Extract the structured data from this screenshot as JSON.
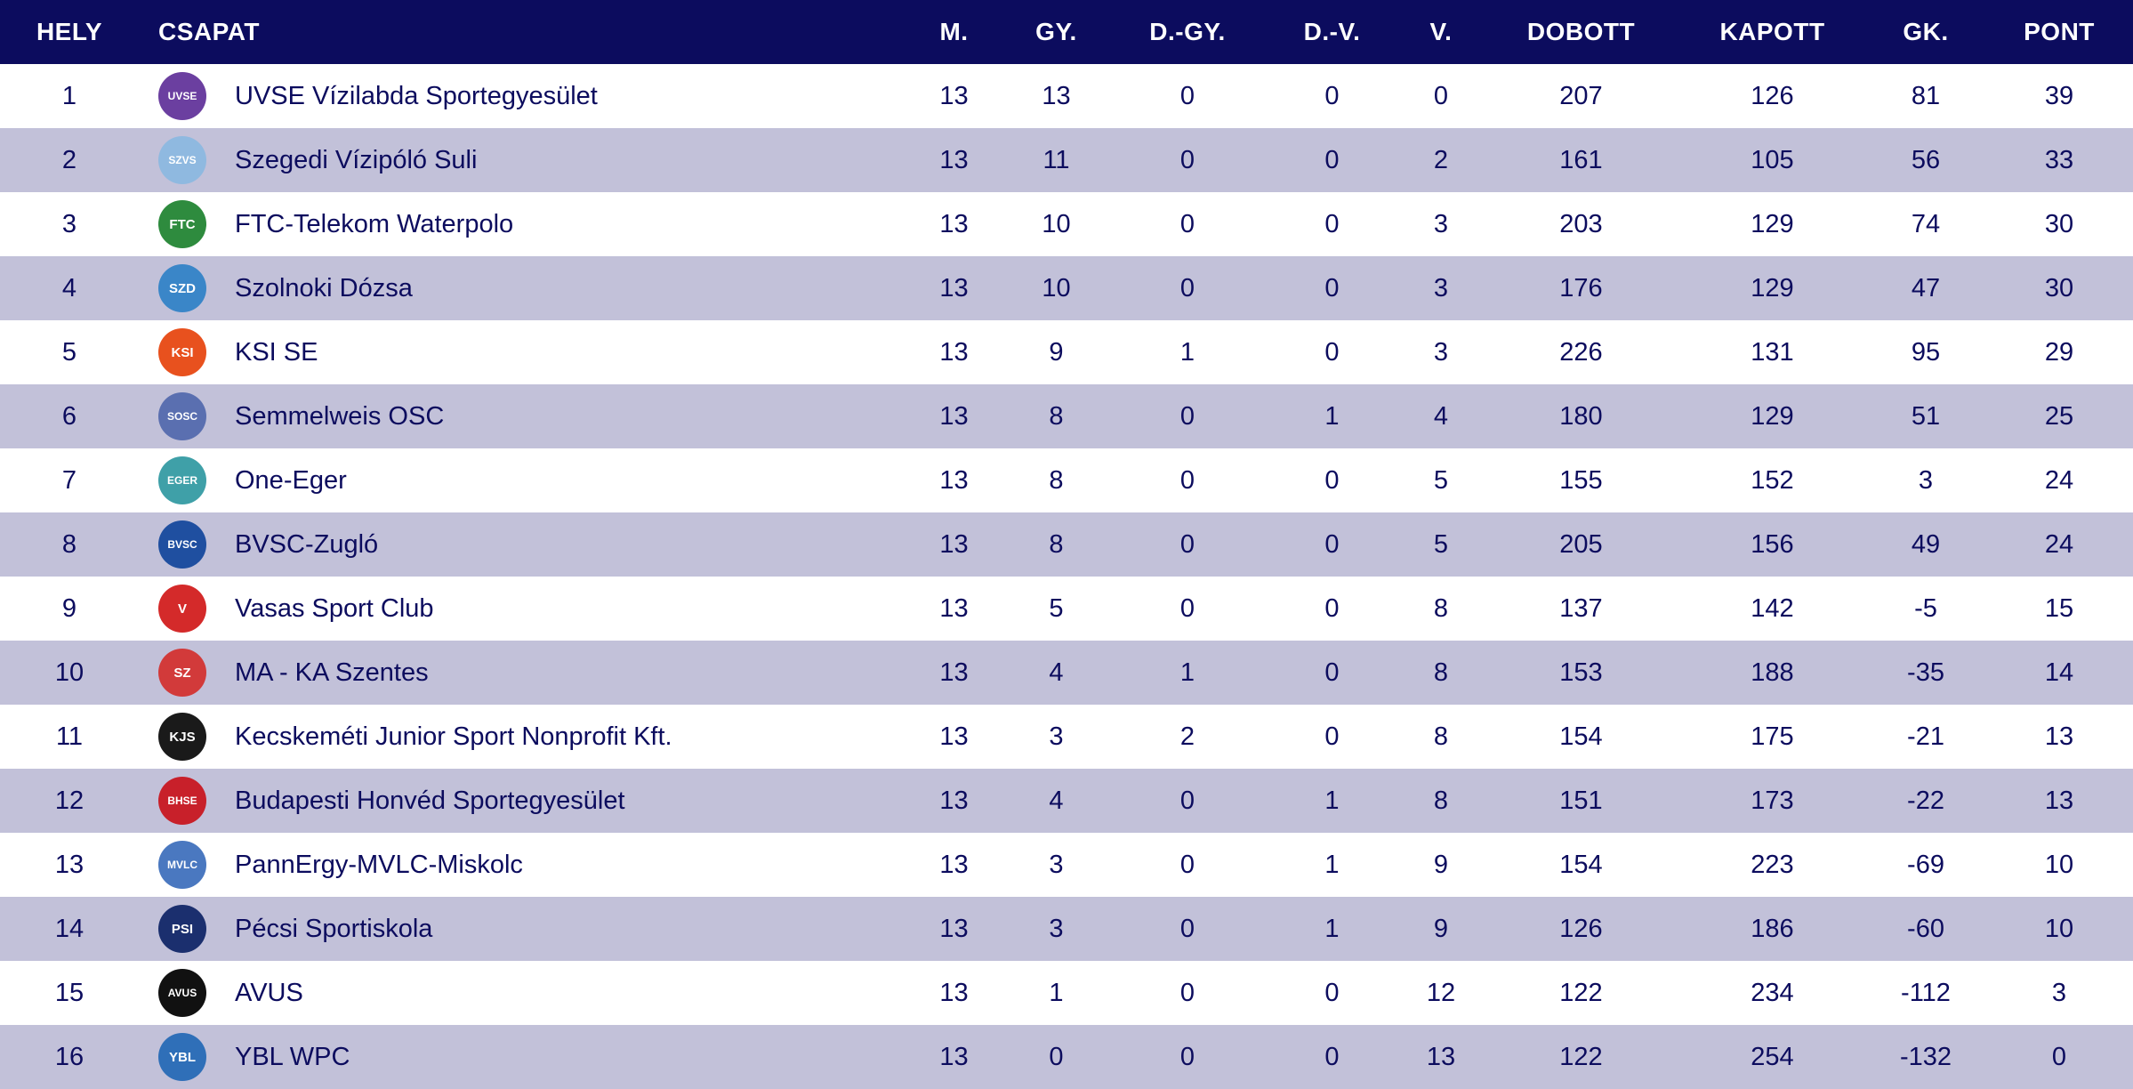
{
  "header": {
    "hely": "HELY",
    "csapat": "CSAPAT",
    "m": "M.",
    "gy": "GY.",
    "dgy": "D.-GY.",
    "dv": "D.-V.",
    "v": "V.",
    "dobott": "DOBOTT",
    "kapott": "KAPOTT",
    "gk": "GK.",
    "pont": "PONT"
  },
  "colors": {
    "header_bg": "#0c0c5e",
    "text": "#0c0c5e",
    "stripe": "#c2c1d9",
    "white": "#ffffff"
  },
  "rows": [
    {
      "hely": "1",
      "team": "UVSE Vízilabda Sportegyesület",
      "logo": "uvse-logo",
      "m": "13",
      "gy": "13",
      "dgy": "0",
      "dv": "0",
      "v": "0",
      "dobott": "207",
      "kapott": "126",
      "gk": "81",
      "pont": "39",
      "logo_color": "#6b3fa0",
      "logo_text": "UVSE"
    },
    {
      "hely": "2",
      "team": "Szegedi Vízipóló Suli",
      "logo": "szeged-logo",
      "m": "13",
      "gy": "11",
      "dgy": "0",
      "dv": "0",
      "v": "2",
      "dobott": "161",
      "kapott": "105",
      "gk": "56",
      "pont": "33",
      "logo_color": "#8fb9e0",
      "logo_text": "SZVS"
    },
    {
      "hely": "3",
      "team": "FTC-Telekom Waterpolo",
      "logo": "ftc-logo",
      "m": "13",
      "gy": "10",
      "dgy": "0",
      "dv": "0",
      "v": "3",
      "dobott": "203",
      "kapott": "129",
      "gk": "74",
      "pont": "30",
      "logo_color": "#2e8b3e",
      "logo_text": "FTC"
    },
    {
      "hely": "4",
      "team": "Szolnoki Dózsa",
      "logo": "szolnok-logo",
      "m": "13",
      "gy": "10",
      "dgy": "0",
      "dv": "0",
      "v": "3",
      "dobott": "176",
      "kapott": "129",
      "gk": "47",
      "pont": "30",
      "logo_color": "#3a86c8",
      "logo_text": "SZD"
    },
    {
      "hely": "5",
      "team": "KSI SE",
      "logo": "ksi-logo",
      "m": "13",
      "gy": "9",
      "dgy": "1",
      "dv": "0",
      "v": "3",
      "dobott": "226",
      "kapott": "131",
      "gk": "95",
      "pont": "29",
      "logo_color": "#e8511e",
      "logo_text": "KSI"
    },
    {
      "hely": "6",
      "team": "Semmelweis OSC",
      "logo": "semmelweis-logo",
      "m": "13",
      "gy": "8",
      "dgy": "0",
      "dv": "1",
      "v": "4",
      "dobott": "180",
      "kapott": "129",
      "gk": "51",
      "pont": "25",
      "logo_color": "#5a6fb0",
      "logo_text": "SOSC"
    },
    {
      "hely": "7",
      "team": "One-Eger",
      "logo": "eger-logo",
      "m": "13",
      "gy": "8",
      "dgy": "0",
      "dv": "0",
      "v": "5",
      "dobott": "155",
      "kapott": "152",
      "gk": "3",
      "pont": "24",
      "logo_color": "#3fa0a8",
      "logo_text": "EGER"
    },
    {
      "hely": "8",
      "team": "BVSC-Zugló",
      "logo": "bvsc-logo",
      "m": "13",
      "gy": "8",
      "dgy": "0",
      "dv": "0",
      "v": "5",
      "dobott": "205",
      "kapott": "156",
      "gk": "49",
      "pont": "24",
      "logo_color": "#1f4fa0",
      "logo_text": "BVSC"
    },
    {
      "hely": "9",
      "team": "Vasas Sport Club",
      "logo": "vasas-logo",
      "m": "13",
      "gy": "5",
      "dgy": "0",
      "dv": "0",
      "v": "8",
      "dobott": "137",
      "kapott": "142",
      "gk": "-5",
      "pont": "15",
      "logo_color": "#d42a2a",
      "logo_text": "V"
    },
    {
      "hely": "10",
      "team": "MA - KA Szentes",
      "logo": "szentes-logo",
      "m": "13",
      "gy": "4",
      "dgy": "1",
      "dv": "0",
      "v": "8",
      "dobott": "153",
      "kapott": "188",
      "gk": "-35",
      "pont": "14",
      "logo_color": "#d23a3a",
      "logo_text": "SZ"
    },
    {
      "hely": "11",
      "team": "Kecskeméti Junior Sport Nonprofit Kft.",
      "logo": "kecskemet-logo",
      "m": "13",
      "gy": "3",
      "dgy": "2",
      "dv": "0",
      "v": "8",
      "dobott": "154",
      "kapott": "175",
      "gk": "-21",
      "pont": "13",
      "logo_color": "#1a1a1a",
      "logo_text": "KJS"
    },
    {
      "hely": "12",
      "team": "Budapesti Honvéd Sportegyesület",
      "logo": "honved-logo",
      "m": "13",
      "gy": "4",
      "dgy": "0",
      "dv": "1",
      "v": "8",
      "dobott": "151",
      "kapott": "173",
      "gk": "-22",
      "pont": "13",
      "logo_color": "#c8202a",
      "logo_text": "BHSE"
    },
    {
      "hely": "13",
      "team": "PannErgy-MVLC-Miskolc",
      "logo": "miskolc-logo",
      "m": "13",
      "gy": "3",
      "dgy": "0",
      "dv": "1",
      "v": "9",
      "dobott": "154",
      "kapott": "223",
      "gk": "-69",
      "pont": "10",
      "logo_color": "#4a78c0",
      "logo_text": "MVLC"
    },
    {
      "hely": "14",
      "team": "Pécsi Sportiskola",
      "logo": "pecs-logo",
      "m": "13",
      "gy": "3",
      "dgy": "0",
      "dv": "1",
      "v": "9",
      "dobott": "126",
      "kapott": "186",
      "gk": "-60",
      "pont": "10",
      "logo_color": "#1b2f6e",
      "logo_text": "PSI"
    },
    {
      "hely": "15",
      "team": "AVUS",
      "logo": "avus-logo",
      "m": "13",
      "gy": "1",
      "dgy": "0",
      "dv": "0",
      "v": "12",
      "dobott": "122",
      "kapott": "234",
      "gk": "-112",
      "pont": "3",
      "logo_color": "#111111",
      "logo_text": "AVUS"
    },
    {
      "hely": "16",
      "team": "YBL WPC",
      "logo": "ybl-logo",
      "m": "13",
      "gy": "0",
      "dgy": "0",
      "dv": "0",
      "v": "13",
      "dobott": "122",
      "kapott": "254",
      "gk": "-132",
      "pont": "0",
      "logo_color": "#2f6fb8",
      "logo_text": "YBL"
    }
  ]
}
